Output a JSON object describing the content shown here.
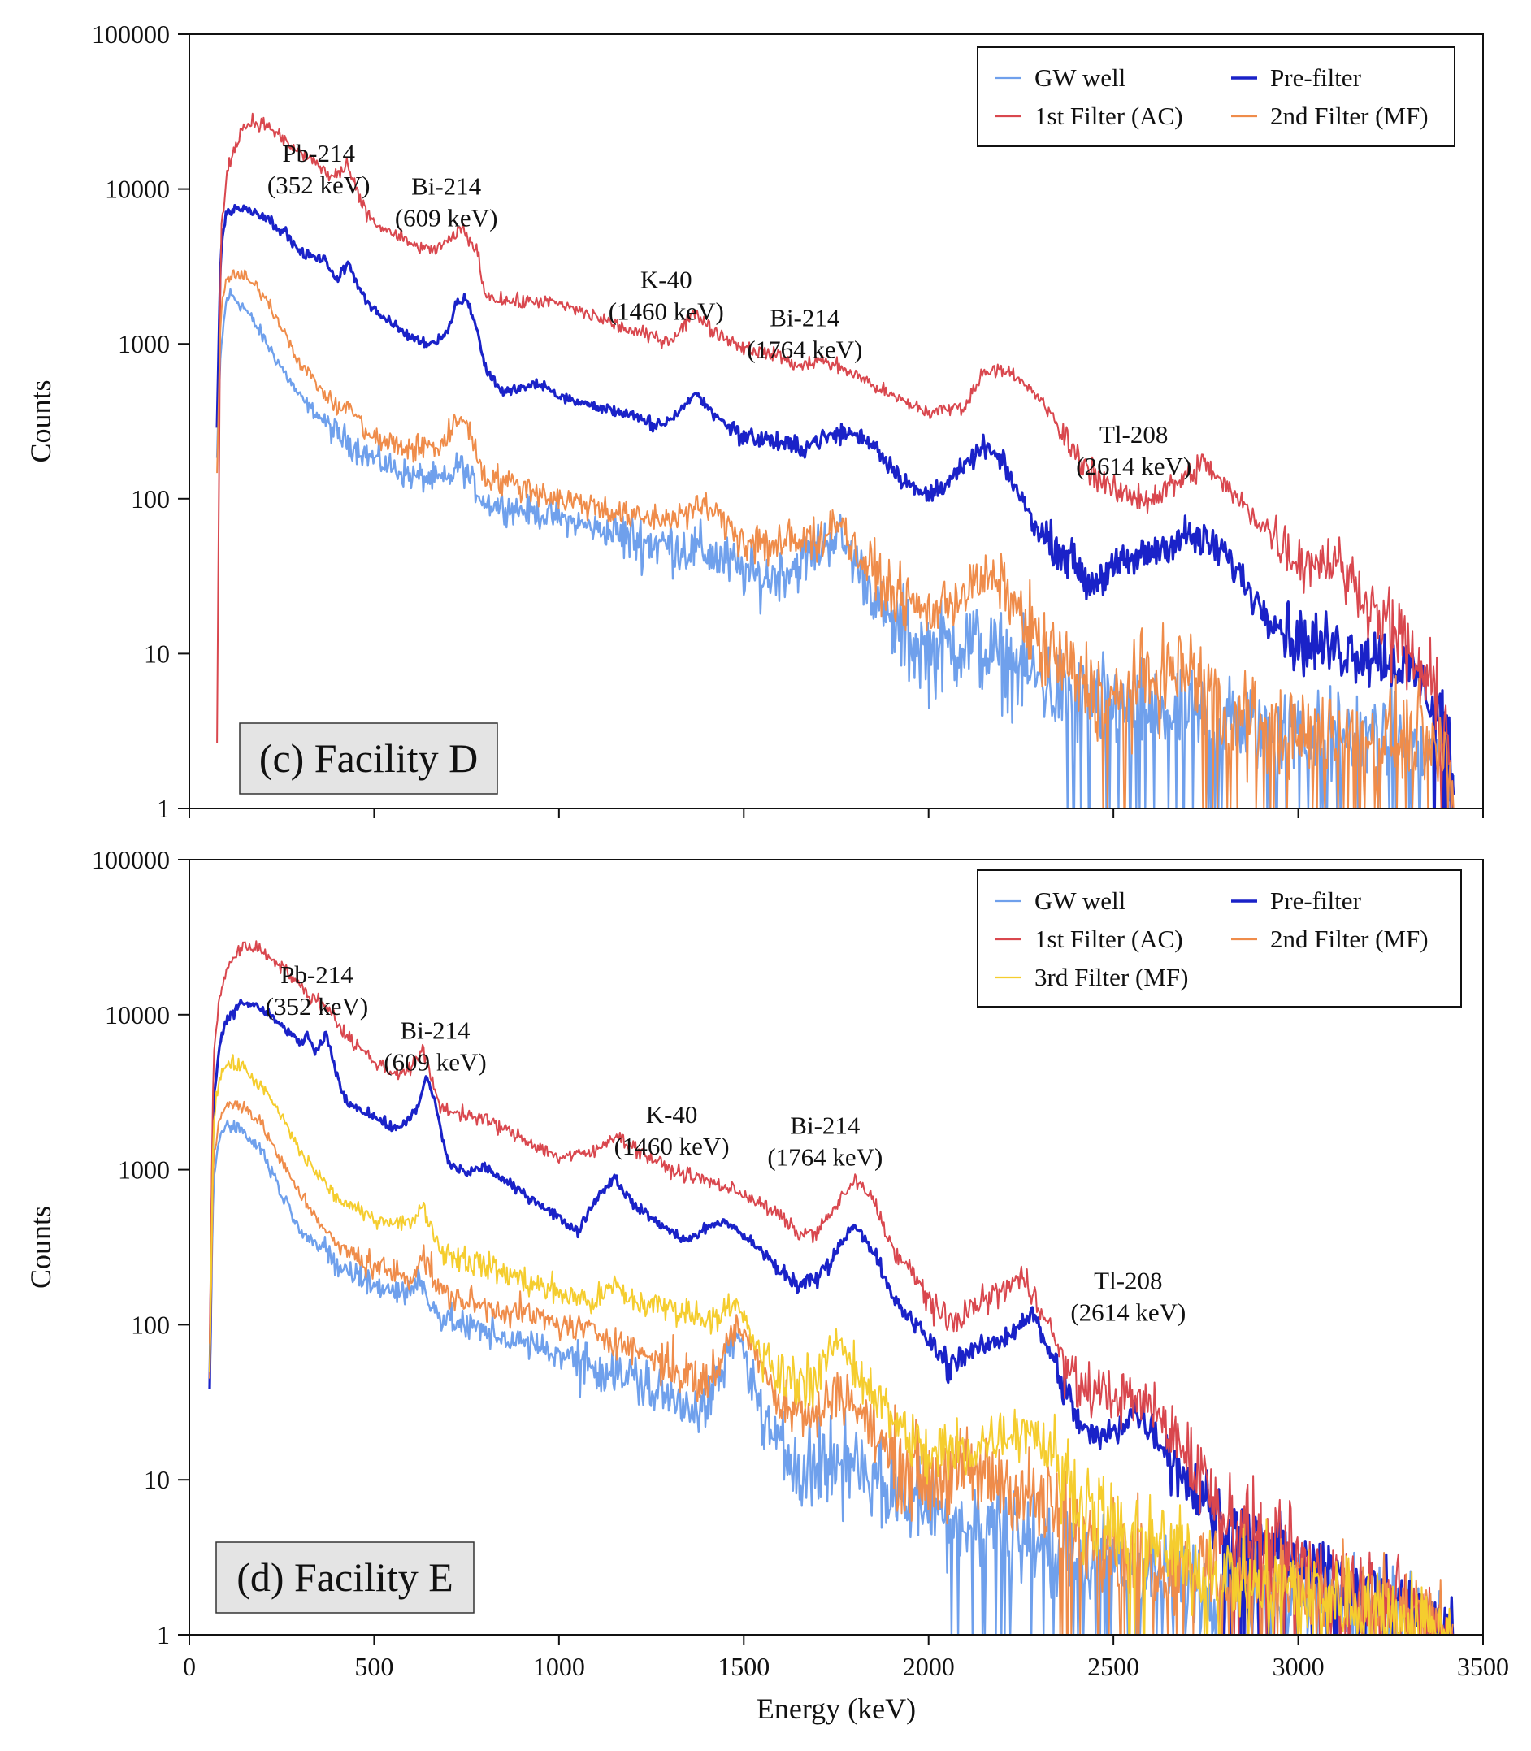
{
  "chart_data": [
    {
      "type": "line",
      "panel": "top",
      "title": "(c) Facility D",
      "xlabel": "",
      "ylabel": "Counts",
      "xlim": [
        0,
        3500
      ],
      "ylim": [
        1,
        100000
      ],
      "yscale": "log",
      "x_ticks": [
        0,
        500,
        1000,
        1500,
        2000,
        2500,
        3000,
        3500
      ],
      "x_tick_labels_shown": false,
      "y_ticks": [
        1,
        10,
        100,
        1000,
        10000,
        100000
      ],
      "y_tick_labels": [
        "1",
        "10",
        "100",
        "1000",
        "10000",
        "100000"
      ],
      "legend_position": "top-right",
      "annotations": [
        {
          "line1": "Pb-214",
          "line2": "(352 keV)",
          "x": 350,
          "y": 15000
        },
        {
          "line1": "Bi-214",
          "line2": "(609 keV)",
          "x": 695,
          "y": 9200
        },
        {
          "line1": "K-40",
          "line2": "(1460 keV)",
          "x": 1290,
          "y": 2300
        },
        {
          "line1": "Bi-214",
          "line2": "(1764 keV)",
          "x": 1665,
          "y": 1300
        },
        {
          "line1": "Tl-208",
          "line2": "(2614 keV)",
          "x": 2555,
          "y": 230
        }
      ],
      "series": [
        {
          "name": "GW well",
          "color": "#6fa0ec",
          "width": 2.4,
          "legend_order": 1,
          "x": [
            75,
            85,
            100,
            110,
            150,
            200,
            250,
            300,
            400,
            500,
            600,
            700,
            730,
            800,
            1000,
            1200,
            1400,
            1550,
            1650,
            1750,
            1800,
            1900,
            2000,
            2100,
            2200,
            2400,
            2700,
            3000,
            3200,
            3300,
            3400,
            3420
          ],
          "y": [
            180,
            900,
            1900,
            2100,
            1700,
            1100,
            700,
            450,
            260,
            180,
            140,
            130,
            170,
            95,
            75,
            55,
            45,
            30,
            38,
            60,
            40,
            15,
            10,
            12,
            9,
            5,
            4,
            3,
            3,
            2.5,
            2,
            1
          ]
        },
        {
          "name": "Pre-filter",
          "color": "#1a22c8",
          "width": 3.2,
          "legend_order": 2,
          "x": [
            75,
            85,
            100,
            130,
            170,
            200,
            260,
            300,
            370,
            400,
            430,
            450,
            480,
            520,
            600,
            650,
            700,
            720,
            750,
            780,
            800,
            850,
            900,
            950,
            1000,
            1100,
            1200,
            1250,
            1300,
            1370,
            1420,
            1500,
            1570,
            1650,
            1700,
            1780,
            1850,
            1900,
            1970,
            2000,
            2100,
            2150,
            2200,
            2300,
            2400,
            2430,
            2500,
            2600,
            2700,
            2800,
            2900,
            3000,
            3200,
            3300,
            3400,
            3420
          ],
          "y": [
            300,
            4000,
            7000,
            7600,
            7200,
            6800,
            5200,
            3900,
            3400,
            2600,
            3300,
            2600,
            1900,
            1500,
            1100,
            1000,
            1200,
            1800,
            2000,
            1200,
            700,
            480,
            520,
            550,
            460,
            390,
            350,
            290,
            320,
            480,
            350,
            250,
            240,
            210,
            240,
            270,
            230,
            160,
            110,
            105,
            160,
            220,
            170,
            60,
            38,
            28,
            35,
            45,
            58,
            45,
            20,
            12,
            10,
            8,
            4,
            1
          ]
        },
        {
          "name": "1st Filter (AC)",
          "color": "#d9474e",
          "width": 2.0,
          "legend_order": 3,
          "x": [
            75,
            85,
            100,
            120,
            140,
            170,
            220,
            260,
            300,
            340,
            380,
            400,
            430,
            460,
            500,
            600,
            650,
            700,
            740,
            780,
            800,
            850,
            900,
            950,
            1000,
            1100,
            1200,
            1300,
            1370,
            1420,
            1500,
            1600,
            1650,
            1700,
            1800,
            1900,
            2000,
            2100,
            2150,
            2200,
            2300,
            2400,
            2500,
            2600,
            2700,
            2750,
            2800,
            2900,
            3000,
            3100,
            3200,
            3300,
            3400,
            3420
          ],
          "y": [
            2,
            5000,
            12000,
            18000,
            24000,
            27500,
            25000,
            20000,
            17000,
            15000,
            12000,
            12500,
            13800,
            8500,
            6000,
            4400,
            4000,
            4500,
            5600,
            3800,
            2100,
            1900,
            1850,
            1900,
            1800,
            1500,
            1200,
            1050,
            1600,
            1200,
            950,
            830,
            700,
            800,
            640,
            460,
            360,
            400,
            670,
            700,
            450,
            190,
            110,
            100,
            140,
            170,
            120,
            70,
            40,
            40,
            20,
            10,
            4,
            1
          ]
        },
        {
          "name": "2nd Filter (MF)",
          "color": "#ef8c4a",
          "width": 2.0,
          "legend_order": 4,
          "x": [
            75,
            85,
            100,
            120,
            150,
            200,
            250,
            300,
            400,
            430,
            500,
            600,
            680,
            740,
            800,
            900,
            1000,
            1100,
            1200,
            1300,
            1400,
            1450,
            1500,
            1600,
            1700,
            1760,
            1800,
            1900,
            2000,
            2150,
            2200,
            2300,
            2400,
            2500,
            2600,
            2700,
            2800,
            3000,
            3200,
            3300,
            3400,
            3420
          ],
          "y": [
            150,
            1500,
            2600,
            2800,
            2700,
            2100,
            1300,
            750,
            380,
            400,
            240,
            210,
            220,
            350,
            140,
            120,
            100,
            90,
            75,
            75,
            90,
            70,
            55,
            50,
            55,
            75,
            45,
            25,
            18,
            30,
            28,
            11,
            7,
            5,
            7,
            8,
            4,
            3,
            3,
            3,
            2.5,
            1
          ]
        }
      ]
    },
    {
      "type": "line",
      "panel": "bottom",
      "title": "(d) Facility E",
      "xlabel": "Energy (keV)",
      "ylabel": "Counts",
      "xlim": [
        0,
        3500
      ],
      "ylim": [
        1,
        100000
      ],
      "yscale": "log",
      "x_ticks": [
        0,
        500,
        1000,
        1500,
        2000,
        2500,
        3000,
        3500
      ],
      "x_tick_labels": [
        "0",
        "500",
        "1000",
        "1500",
        "2000",
        "2500",
        "3000",
        "3500"
      ],
      "y_ticks": [
        1,
        10,
        100,
        1000,
        10000,
        100000
      ],
      "y_tick_labels": [
        "1",
        "10",
        "100",
        "1000",
        "10000",
        "100000"
      ],
      "legend_position": "top-right",
      "annotations": [
        {
          "line1": "Pb-214",
          "line2": "(352 keV)",
          "x": 345,
          "y": 16000
        },
        {
          "line1": "Bi-214",
          "line2": "(609 keV)",
          "x": 665,
          "y": 7000
        },
        {
          "line1": "K-40",
          "line2": "(1460 keV)",
          "x": 1305,
          "y": 2000
        },
        {
          "line1": "Bi-214",
          "line2": "(1764 keV)",
          "x": 1720,
          "y": 1700
        },
        {
          "line1": "Tl-208",
          "line2": "(2614 keV)",
          "x": 2540,
          "y": 170
        }
      ],
      "series": [
        {
          "name": "GW well",
          "color": "#6fa0ec",
          "width": 2.4,
          "legend_order": 1,
          "x": [
            55,
            65,
            80,
            100,
            130,
            200,
            250,
            300,
            400,
            500,
            600,
            620,
            680,
            800,
            1000,
            1200,
            1300,
            1400,
            1480,
            1500,
            1550,
            1600,
            1700,
            1800,
            1900,
            2000,
            2100,
            2200,
            2300,
            2400,
            2500,
            2600,
            2800,
            3000,
            3200,
            3300,
            3420
          ],
          "y": [
            35,
            800,
            1600,
            2000,
            1900,
            1300,
            700,
            420,
            240,
            180,
            160,
            200,
            110,
            90,
            65,
            45,
            33,
            30,
            85,
            70,
            25,
            15,
            12,
            14,
            8,
            7,
            5,
            5,
            4,
            3,
            3,
            2.5,
            2,
            2,
            1.5,
            1.5,
            1
          ]
        },
        {
          "name": "Pre-filter",
          "color": "#1a22c8",
          "width": 3.2,
          "legend_order": 2,
          "x": [
            55,
            65,
            80,
            100,
            140,
            180,
            250,
            300,
            320,
            340,
            370,
            390,
            420,
            500,
            560,
            620,
            640,
            660,
            700,
            750,
            800,
            850,
            950,
            1050,
            1100,
            1150,
            1200,
            1300,
            1350,
            1420,
            1450,
            1500,
            1600,
            1650,
            1700,
            1800,
            1850,
            1900,
            2000,
            2050,
            2100,
            2200,
            2280,
            2350,
            2400,
            2450,
            2500,
            2550,
            2600,
            2700,
            2800,
            3000,
            3200,
            3420
          ],
          "y": [
            40,
            2500,
            6000,
            9000,
            12000,
            11500,
            8500,
            6500,
            7500,
            5500,
            7400,
            5000,
            2800,
            2200,
            1800,
            2500,
            4000,
            3000,
            1100,
            950,
            1050,
            850,
            600,
            400,
            650,
            900,
            600,
            400,
            350,
            450,
            460,
            380,
            220,
            180,
            200,
            450,
            300,
            150,
            80,
            55,
            65,
            80,
            120,
            50,
            25,
            18,
            20,
            28,
            22,
            10,
            5,
            3,
            2,
            1
          ]
        },
        {
          "name": "1st Filter (AC)",
          "color": "#d9474e",
          "width": 2.0,
          "legend_order": 3,
          "x": [
            55,
            65,
            80,
            100,
            140,
            170,
            250,
            300,
            340,
            380,
            420,
            500,
            550,
            600,
            630,
            680,
            800,
            900,
            1000,
            1100,
            1150,
            1200,
            1300,
            1400,
            1500,
            1600,
            1650,
            1700,
            1800,
            1850,
            1900,
            2000,
            2050,
            2100,
            2250,
            2300,
            2350,
            2400,
            2500,
            2600,
            2700,
            2800,
            3000,
            3200,
            3420
          ],
          "y": [
            80,
            5000,
            12000,
            20000,
            27000,
            28000,
            21000,
            15000,
            12500,
            11000,
            7500,
            5000,
            4200,
            4500,
            6000,
            2500,
            2100,
            1600,
            1200,
            1300,
            1700,
            1400,
            1000,
            850,
            700,
            500,
            380,
            400,
            850,
            650,
            320,
            150,
            100,
            120,
            200,
            140,
            70,
            40,
            35,
            30,
            15,
            6,
            3,
            2,
            1
          ]
        },
        {
          "name": "2nd Filter (MF)",
          "color": "#ef8c4a",
          "width": 2.0,
          "legend_order": 4,
          "x": [
            55,
            65,
            80,
            100,
            140,
            200,
            250,
            300,
            400,
            500,
            600,
            630,
            680,
            800,
            900,
            1000,
            1100,
            1200,
            1300,
            1400,
            1480,
            1550,
            1600,
            1700,
            1750,
            1800,
            1900,
            2000,
            2100,
            2200,
            2300,
            2400,
            2500,
            2600,
            2700,
            2800,
            3000,
            3200,
            3420
          ],
          "y": [
            40,
            1200,
            2000,
            2600,
            2700,
            1900,
            1100,
            700,
            320,
            240,
            200,
            290,
            160,
            130,
            120,
            100,
            90,
            70,
            55,
            40,
            100,
            60,
            30,
            25,
            40,
            30,
            14,
            10,
            11,
            10,
            7,
            5,
            4,
            3,
            3,
            2.5,
            2,
            1.5,
            1
          ]
        },
        {
          "name": "3rd Filter (MF)",
          "color": "#f5cd2e",
          "width": 2.0,
          "legend_order": 5,
          "x": [
            55,
            65,
            80,
            100,
            140,
            200,
            250,
            300,
            400,
            500,
            600,
            630,
            680,
            800,
            1000,
            1100,
            1150,
            1200,
            1300,
            1400,
            1480,
            1500,
            1550,
            1600,
            1700,
            1750,
            1800,
            1900,
            2000,
            2100,
            2200,
            2280,
            2350,
            2400,
            2500,
            2600,
            2700,
            2800,
            3000,
            3200,
            3420
          ],
          "y": [
            60,
            2000,
            3800,
            4800,
            4700,
            3300,
            2200,
            1300,
            650,
            480,
            450,
            600,
            300,
            240,
            160,
            140,
            180,
            140,
            130,
            110,
            130,
            110,
            60,
            45,
            45,
            80,
            55,
            25,
            14,
            15,
            20,
            22,
            12,
            8,
            5,
            4,
            3,
            2.5,
            2,
            1.5,
            1
          ]
        }
      ]
    }
  ]
}
